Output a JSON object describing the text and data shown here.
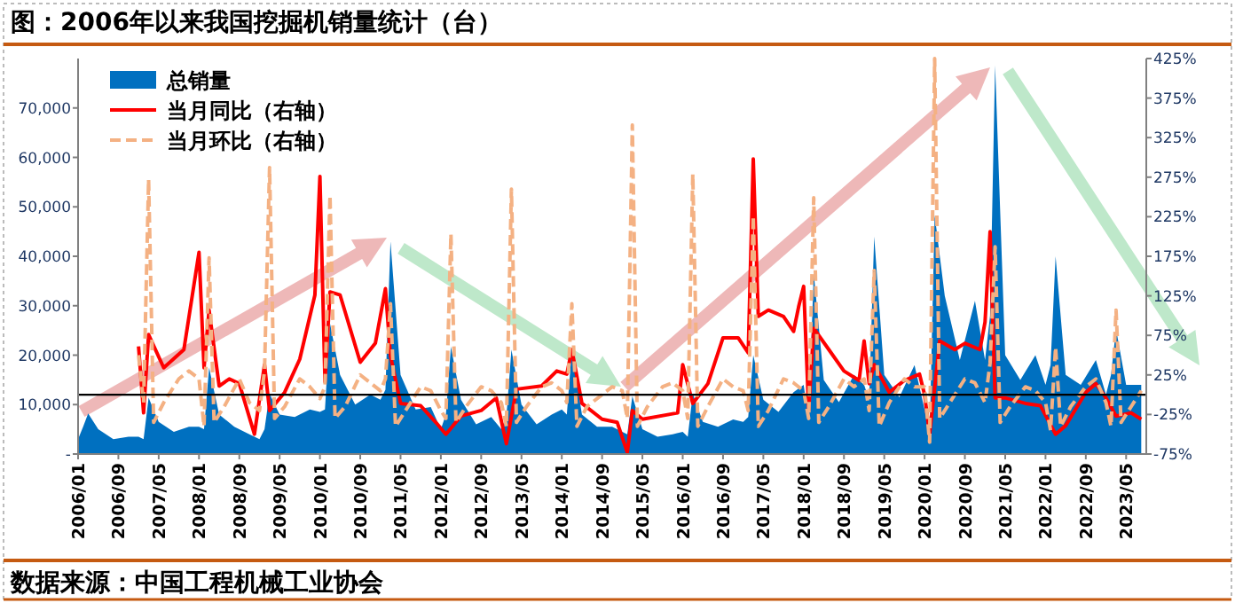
{
  "chart_data": {
    "type": "area",
    "title": "图：2006年以来我国挖掘机销量统计（台）",
    "annotations": [
      "数据来源：中国工程机械工业协会"
    ],
    "xlim": [
      "2006-01",
      "2023-09"
    ],
    "xticks": [
      {
        "value": "2006-01",
        "label": "2006/01"
      },
      {
        "value": "2006-09",
        "label": "2006/09"
      },
      {
        "value": "2007-05",
        "label": "2007/05"
      },
      {
        "value": "2008-01",
        "label": "2008/01"
      },
      {
        "value": "2008-09",
        "label": "2008/09"
      },
      {
        "value": "2009-05",
        "label": "2009/05"
      },
      {
        "value": "2010-01",
        "label": "2010/01"
      },
      {
        "value": "2010-09",
        "label": "2010/09"
      },
      {
        "value": "2011-05",
        "label": "2011/05"
      },
      {
        "value": "2012-01",
        "label": "2012/01"
      },
      {
        "value": "2012-09",
        "label": "2012/09"
      },
      {
        "value": "2013-05",
        "label": "2013/05"
      },
      {
        "value": "2014-01",
        "label": "2014/01"
      },
      {
        "value": "2014-09",
        "label": "2014/09"
      },
      {
        "value": "2015-05",
        "label": "2015/05"
      },
      {
        "value": "2016-01",
        "label": "2016/01"
      },
      {
        "value": "2016-09",
        "label": "2016/09"
      },
      {
        "value": "2017-05",
        "label": "2017/05"
      },
      {
        "value": "2018-01",
        "label": "2018/01"
      },
      {
        "value": "2018-09",
        "label": "2018/09"
      },
      {
        "value": "2019-05",
        "label": "2019/05"
      },
      {
        "value": "2020-01",
        "label": "2020/01"
      },
      {
        "value": "2020-09",
        "label": "2020/09"
      },
      {
        "value": "2021-05",
        "label": "2021/05"
      },
      {
        "value": "2022-01",
        "label": "2022/01"
      },
      {
        "value": "2022-09",
        "label": "2022/09"
      },
      {
        "value": "2023-05",
        "label": "2023/05"
      }
    ],
    "ylim": [
      0,
      80000
    ],
    "yticks": [
      {
        "value": 0,
        "label": "-"
      },
      {
        "value": 10000,
        "label": "10,000"
      },
      {
        "value": 20000,
        "label": "20,000"
      },
      {
        "value": 30000,
        "label": "30,000"
      },
      {
        "value": 40000,
        "label": "40,000"
      },
      {
        "value": 50000,
        "label": "50,000"
      },
      {
        "value": 60000,
        "label": "60,000"
      },
      {
        "value": 70000,
        "label": "70,000"
      }
    ],
    "y2lim": [
      -75,
      425
    ],
    "y2ticks": [
      {
        "value": -75,
        "label": "-75%"
      },
      {
        "value": -25,
        "label": "-25%"
      },
      {
        "value": 25,
        "label": "25%"
      },
      {
        "value": 75,
        "label": "75%"
      },
      {
        "value": 125,
        "label": "125%"
      },
      {
        "value": 175,
        "label": "175%"
      },
      {
        "value": 225,
        "label": "225%"
      },
      {
        "value": 275,
        "label": "275%"
      },
      {
        "value": 325,
        "label": "325%"
      },
      {
        "value": 375,
        "label": "375%"
      },
      {
        "value": 425,
        "label": "425%"
      }
    ],
    "ref_lines": [
      {
        "axis": "y2",
        "value": 0,
        "color": "#000000"
      }
    ],
    "legend": "top left",
    "grid": false,
    "series": [
      {
        "name": "总销量",
        "type": "area",
        "color": "#0070c0",
        "x": [
          "2006-01",
          "2006-02",
          "2006-03",
          "2006-05",
          "2006-08",
          "2006-11",
          "2007-01",
          "2007-02",
          "2007-03",
          "2007-05",
          "2007-08",
          "2007-11",
          "2008-01",
          "2008-02",
          "2008-03",
          "2008-05",
          "2008-08",
          "2008-11",
          "2009-01",
          "2009-02",
          "2009-03",
          "2009-05",
          "2009-08",
          "2009-11",
          "2010-01",
          "2010-02",
          "2010-03",
          "2010-05",
          "2010-08",
          "2010-11",
          "2011-01",
          "2011-02",
          "2011-03",
          "2011-05",
          "2011-08",
          "2011-11",
          "2012-01",
          "2012-02",
          "2012-03",
          "2012-05",
          "2012-08",
          "2012-11",
          "2013-01",
          "2013-02",
          "2013-03",
          "2013-05",
          "2013-08",
          "2013-11",
          "2014-01",
          "2014-02",
          "2014-03",
          "2014-05",
          "2014-08",
          "2014-11",
          "2015-01",
          "2015-02",
          "2015-03",
          "2015-05",
          "2015-08",
          "2015-11",
          "2016-01",
          "2016-02",
          "2016-03",
          "2016-05",
          "2016-08",
          "2016-11",
          "2017-01",
          "2017-02",
          "2017-03",
          "2017-05",
          "2017-08",
          "2017-11",
          "2018-01",
          "2018-02",
          "2018-03",
          "2018-05",
          "2018-08",
          "2018-11",
          "2019-01",
          "2019-02",
          "2019-03",
          "2019-05",
          "2019-08",
          "2019-11",
          "2020-01",
          "2020-02",
          "2020-03",
          "2020-05",
          "2020-08",
          "2020-11",
          "2021-01",
          "2021-02",
          "2021-03",
          "2021-05",
          "2021-08",
          "2021-11",
          "2022-01",
          "2022-02",
          "2022-03",
          "2022-05",
          "2022-08",
          "2022-11",
          "2023-01",
          "2023-02",
          "2023-03",
          "2023-05",
          "2023-08"
        ],
        "values": [
          3000,
          5500,
          8200,
          5000,
          3000,
          3500,
          3500,
          3000,
          11400,
          6500,
          4500,
          5500,
          5500,
          5000,
          17500,
          8000,
          5500,
          4000,
          3000,
          5000,
          12200,
          8000,
          7500,
          9000,
          8500,
          9000,
          26400,
          16000,
          10000,
          12000,
          11000,
          13000,
          43000,
          16000,
          9000,
          9500,
          5000,
          8000,
          21700,
          11000,
          6000,
          7500,
          5000,
          7500,
          21100,
          10000,
          6000,
          8000,
          9000,
          8000,
          21100,
          8000,
          5500,
          5500,
          4500,
          4000,
          11700,
          5000,
          3500,
          4000,
          4500,
          3500,
          12200,
          6500,
          5500,
          7000,
          6500,
          7500,
          20000,
          11000,
          8500,
          12500,
          14000,
          7000,
          36700,
          15000,
          10500,
          16000,
          14000,
          11000,
          44000,
          16000,
          11500,
          18000,
          9000,
          3500,
          48400,
          32000,
          19000,
          31000,
          19000,
          28000,
          78600,
          20000,
          15000,
          20000,
          14000,
          18000,
          40000,
          16000,
          14000,
          19000,
          12000,
          16000,
          25300,
          14000,
          14000
        ]
      },
      {
        "name": "当月同比（右轴）",
        "type": "line",
        "axis": "y2",
        "color": "#ff0000",
        "line_style": "solid",
        "x": [
          "2007-01",
          "2007-02",
          "2007-03",
          "2007-06",
          "2007-10",
          "2008-01",
          "2008-02",
          "2008-03",
          "2008-05",
          "2008-07",
          "2008-09",
          "2008-12",
          "2009-02",
          "2009-03",
          "2009-06",
          "2009-09",
          "2009-12",
          "2010-01",
          "2010-02",
          "2010-03",
          "2010-05",
          "2010-09",
          "2010-12",
          "2011-02",
          "2011-03",
          "2011-05",
          "2011-09",
          "2011-12",
          "2012-02",
          "2012-05",
          "2012-09",
          "2012-12",
          "2013-02",
          "2013-04",
          "2013-09",
          "2013-12",
          "2014-02",
          "2014-03",
          "2014-05",
          "2014-09",
          "2014-12",
          "2015-02",
          "2015-03",
          "2015-05",
          "2015-12",
          "2016-01",
          "2016-03",
          "2016-06",
          "2016-09",
          "2016-12",
          "2017-02",
          "2017-03",
          "2017-04",
          "2017-06",
          "2017-09",
          "2017-11",
          "2017-12",
          "2018-01",
          "2018-02",
          "2018-03",
          "2018-06",
          "2018-09",
          "2018-12",
          "2019-01",
          "2019-02",
          "2019-03",
          "2019-06",
          "2019-09",
          "2019-12",
          "2020-01",
          "2020-02",
          "2020-04",
          "2020-07",
          "2020-09",
          "2020-12",
          "2021-01",
          "2021-02",
          "2021-03",
          "2021-05",
          "2021-09",
          "2021-12",
          "2022-03",
          "2022-05",
          "2022-09",
          "2022-11",
          "2023-01",
          "2023-03",
          "2023-06",
          "2023-08"
        ],
        "values": [
          61,
          -23,
          76,
          34,
          57,
          180,
          34,
          107,
          11,
          20,
          14,
          -50,
          38,
          -20,
          3,
          45,
          126,
          276,
          16,
          130,
          126,
          41,
          65,
          134,
          49,
          -11,
          -14,
          -35,
          -50,
          -27,
          -20,
          -4,
          -62,
          7,
          11,
          30,
          26,
          57,
          -11,
          -31,
          -35,
          -73,
          -20,
          -31,
          -23,
          38,
          -11,
          14,
          72,
          72,
          53,
          298,
          99,
          107,
          99,
          80,
          111,
          137,
          -20,
          84,
          57,
          30,
          18,
          68,
          14,
          38,
          3,
          18,
          26,
          0,
          -50,
          68,
          57,
          65,
          57,
          92,
          206,
          -4,
          -4,
          -11,
          -14,
          -50,
          -39,
          3,
          14,
          -4,
          -27,
          -23,
          -31
        ]
      },
      {
        "name": "当月环比（右轴）",
        "type": "line",
        "axis": "y2",
        "color": "#f4b183",
        "line_style": "dashed",
        "x": [
          "2007-01",
          "2007-02",
          "2007-03",
          "2007-04",
          "2007-06",
          "2007-09",
          "2007-11",
          "2008-01",
          "2008-02",
          "2008-03",
          "2008-04",
          "2008-06",
          "2008-09",
          "2008-11",
          "2009-01",
          "2009-02",
          "2009-03",
          "2009-04",
          "2009-06",
          "2009-09",
          "2009-11",
          "2010-01",
          "2010-02",
          "2010-03",
          "2010-04",
          "2010-06",
          "2010-09",
          "2010-11",
          "2011-01",
          "2011-02",
          "2011-03",
          "2011-04",
          "2011-06",
          "2011-09",
          "2011-11",
          "2012-01",
          "2012-02",
          "2012-03",
          "2012-04",
          "2012-06",
          "2012-09",
          "2012-11",
          "2013-01",
          "2013-02",
          "2013-03",
          "2013-04",
          "2013-06",
          "2013-09",
          "2013-11",
          "2014-01",
          "2014-02",
          "2014-03",
          "2014-04",
          "2014-06",
          "2014-09",
          "2014-11",
          "2015-01",
          "2015-02",
          "2015-03",
          "2015-04",
          "2015-06",
          "2015-09",
          "2015-11",
          "2016-01",
          "2016-02",
          "2016-03",
          "2016-04",
          "2016-06",
          "2016-09",
          "2016-11",
          "2017-01",
          "2017-02",
          "2017-03",
          "2017-04",
          "2017-06",
          "2017-09",
          "2017-11",
          "2018-01",
          "2018-02",
          "2018-03",
          "2018-04",
          "2018-06",
          "2018-09",
          "2018-11",
          "2019-01",
          "2019-02",
          "2019-03",
          "2019-04",
          "2019-06",
          "2019-09",
          "2019-11",
          "2020-01",
          "2020-02",
          "2020-03",
          "2020-04",
          "2020-06",
          "2020-09",
          "2020-11",
          "2021-01",
          "2021-02",
          "2021-03",
          "2021-04",
          "2021-06",
          "2021-09",
          "2021-11",
          "2022-01",
          "2022-02",
          "2022-03",
          "2022-04",
          "2022-06",
          "2022-09",
          "2022-11",
          "2023-01",
          "2023-02",
          "2023-03",
          "2023-04",
          "2023-06",
          "2023-08"
        ],
        "values": [
          50,
          -10,
          272,
          -35,
          -10,
          20,
          30,
          20,
          -40,
          173,
          -35,
          -15,
          20,
          -10,
          -20,
          30,
          287,
          -30,
          -15,
          20,
          10,
          -5,
          10,
          252,
          -30,
          -15,
          25,
          15,
          5,
          20,
          115,
          -40,
          -20,
          10,
          5,
          -20,
          -30,
          203,
          -35,
          -15,
          10,
          5,
          -10,
          -40,
          260,
          -35,
          -15,
          10,
          15,
          5,
          -10,
          115,
          -40,
          -15,
          0,
          10,
          5,
          -30,
          341,
          -40,
          -15,
          10,
          15,
          5,
          -30,
          279,
          -40,
          -15,
          20,
          10,
          5,
          -20,
          226,
          -40,
          -20,
          20,
          15,
          5,
          -30,
          249,
          -35,
          -15,
          20,
          10,
          20,
          -20,
          157,
          -40,
          -10,
          20,
          10,
          10,
          -60,
          425,
          -30,
          -10,
          20,
          15,
          -10,
          40,
          187,
          -35,
          -15,
          10,
          5,
          -10,
          -45,
          60,
          -40,
          -15,
          10,
          20,
          -10,
          -40,
          107,
          -35,
          -15,
          5
        ]
      }
    ]
  }
}
